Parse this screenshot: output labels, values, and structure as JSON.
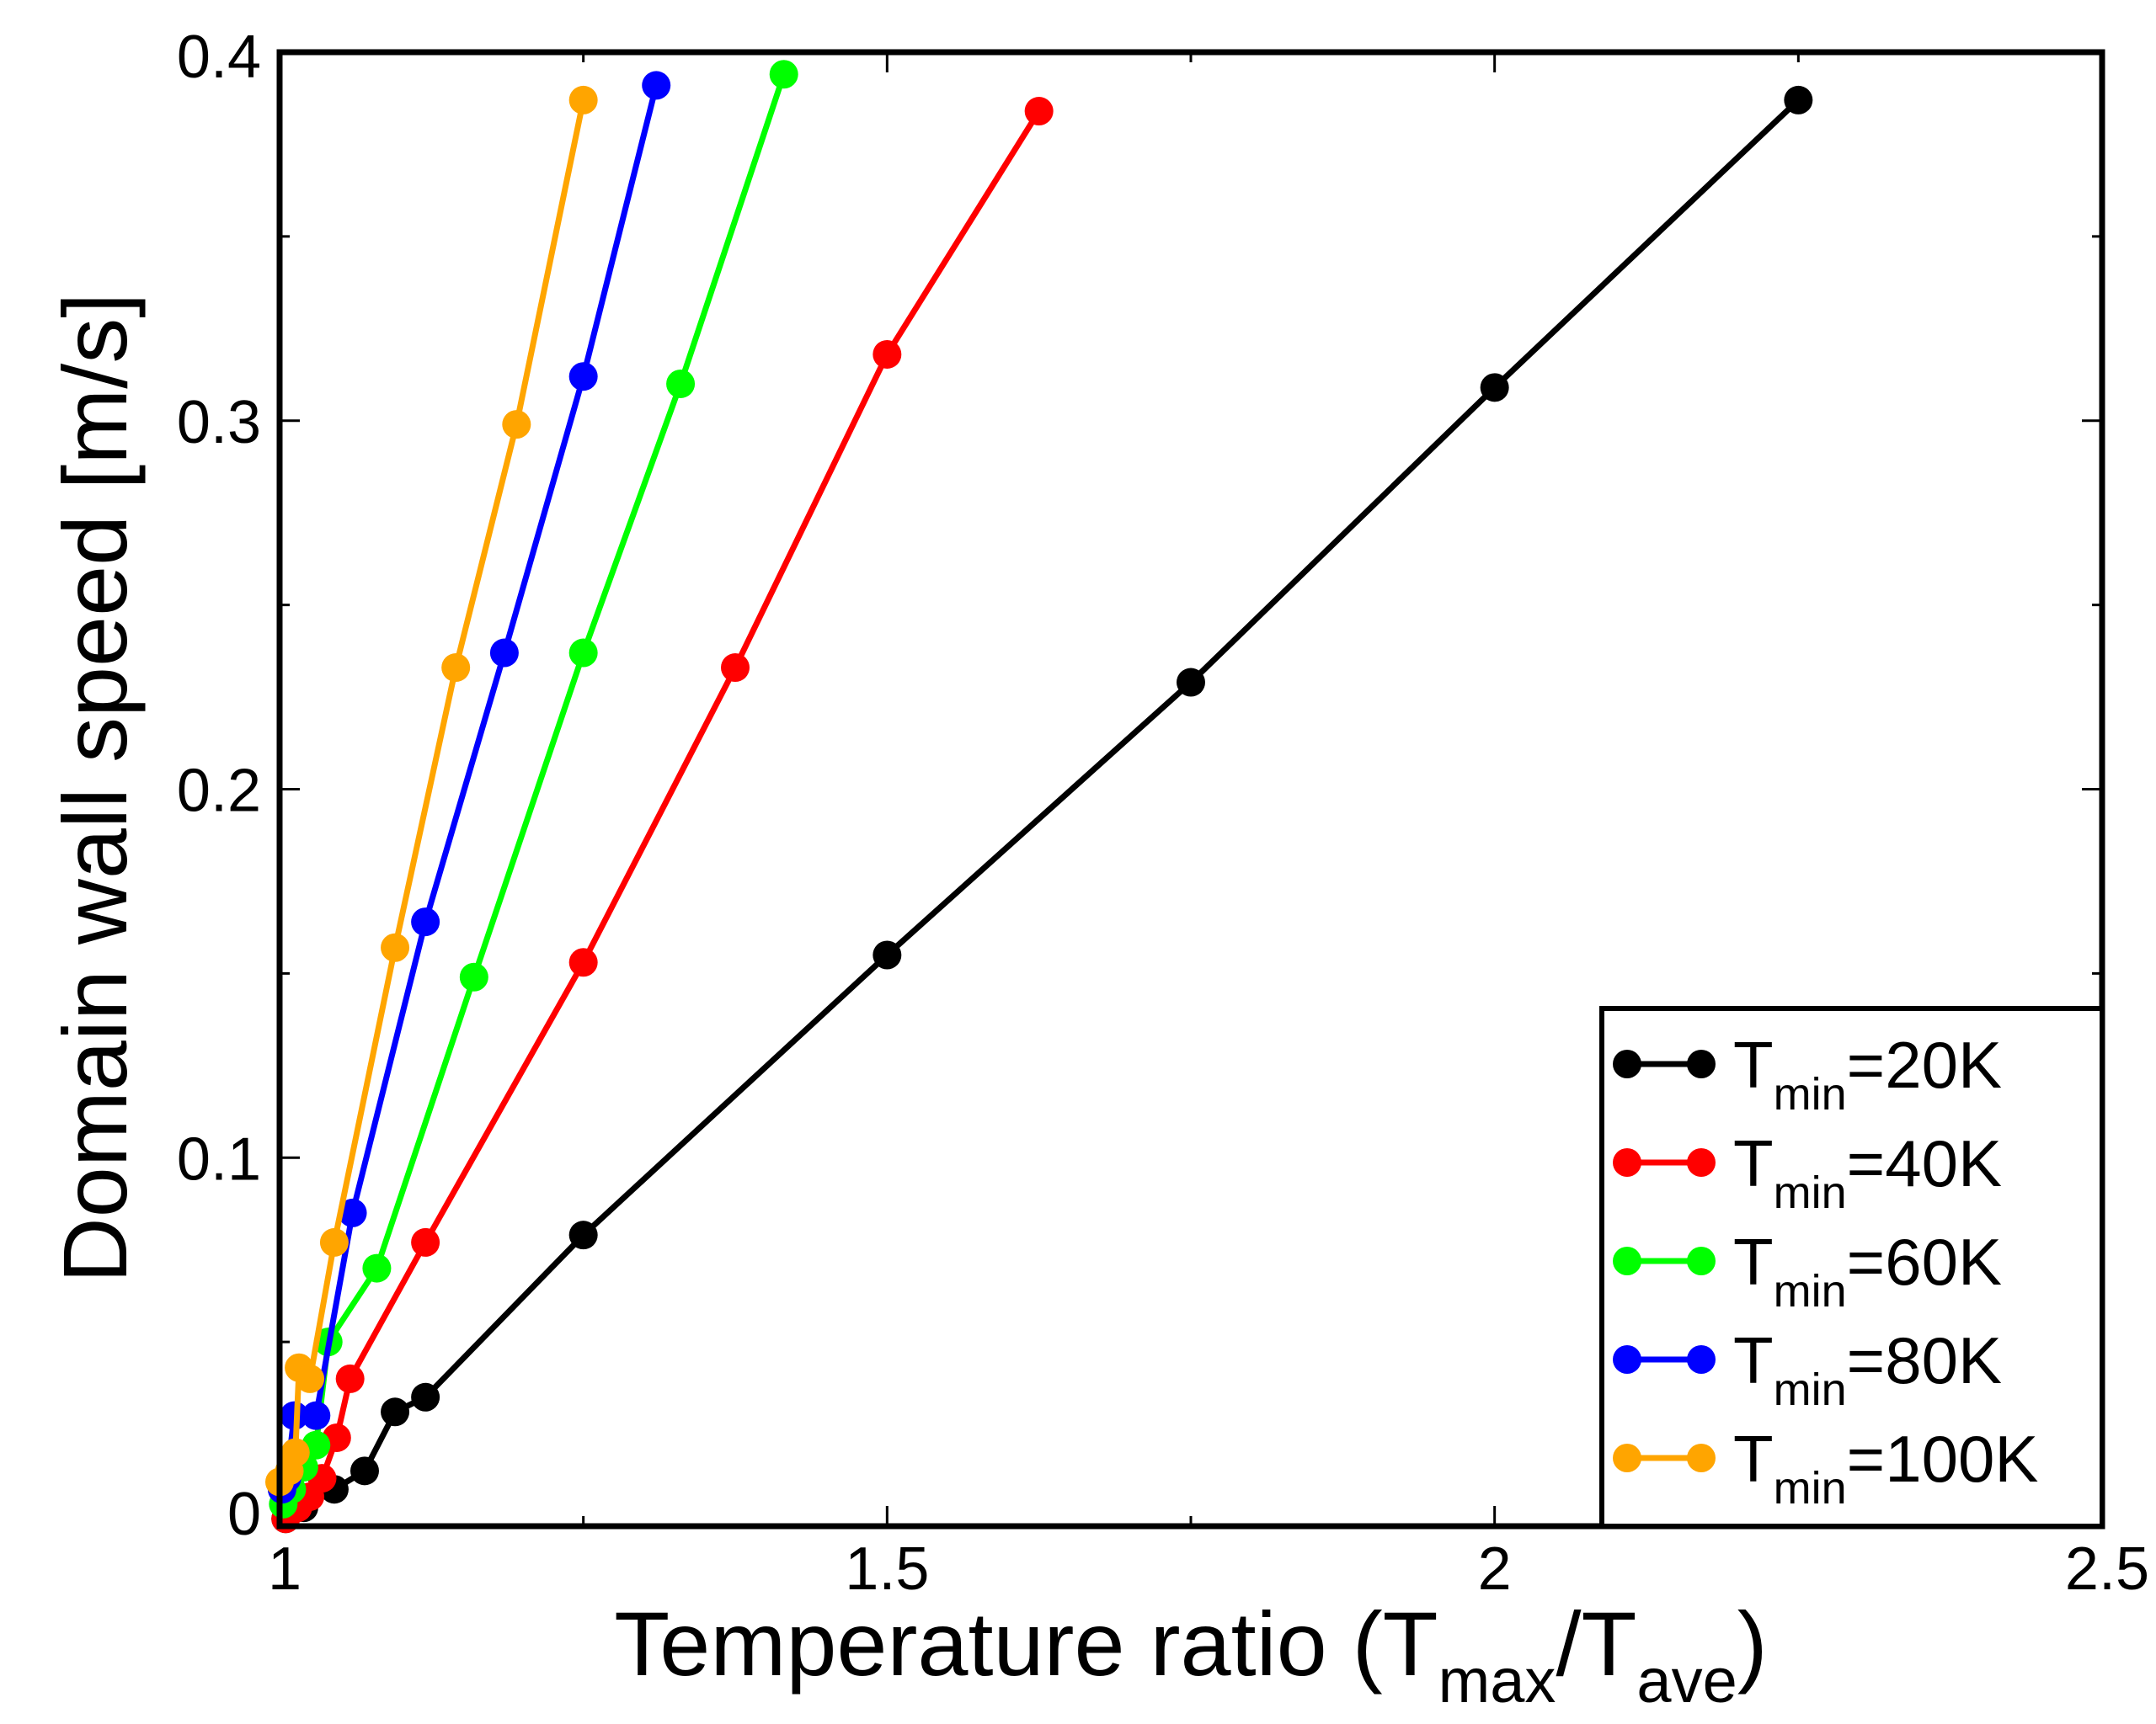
{
  "chart_data": {
    "type": "line",
    "title": "",
    "xlabel": {
      "main": "Temperature ratio (T",
      "sub1": "max",
      "mid": "/T",
      "sub2": "ave",
      "end": ")"
    },
    "ylabel": "Domain wall speed [m/s]",
    "xlim": [
      1,
      2.5
    ],
    "ylim": [
      0,
      0.4
    ],
    "x_ticks": [
      1,
      1.5,
      2,
      2.5
    ],
    "x_tick_labels": [
      "1",
      "1.5",
      "2",
      "2.5"
    ],
    "x_minor_ticks": [
      1.25,
      1.75,
      2.25
    ],
    "y_ticks": [
      0,
      0.1,
      0.2,
      0.3,
      0.4
    ],
    "y_tick_labels": [
      "0",
      "0.1",
      "0.2",
      "0.3",
      "0.4"
    ],
    "y_minor_ticks": [
      0.05,
      0.15,
      0.25,
      0.35
    ],
    "grid": false,
    "legend_position": "bottom-right",
    "series": [
      {
        "name": "Tmin=20K",
        "label_main": "T",
        "label_sub": "min",
        "label_rest": "=20K",
        "color": "#000000",
        "points": [
          [
            1.005,
            0.002
          ],
          [
            1.02,
            0.005
          ],
          [
            1.045,
            0.01
          ],
          [
            1.07,
            0.015
          ],
          [
            1.095,
            0.031
          ],
          [
            1.12,
            0.035
          ],
          [
            1.25,
            0.079
          ],
          [
            1.5,
            0.155
          ],
          [
            1.75,
            0.229
          ],
          [
            2.0,
            0.309
          ],
          [
            2.25,
            0.387
          ]
        ]
      },
      {
        "name": "Tmin=40K",
        "label_main": "T",
        "label_sub": "min",
        "label_rest": "=40K",
        "color": "#ff0000",
        "points": [
          [
            1.005,
            0.002
          ],
          [
            1.015,
            0.005
          ],
          [
            1.025,
            0.008
          ],
          [
            1.035,
            0.013
          ],
          [
            1.047,
            0.024
          ],
          [
            1.058,
            0.04
          ],
          [
            1.12,
            0.077
          ],
          [
            1.25,
            0.153
          ],
          [
            1.375,
            0.233
          ],
          [
            1.5,
            0.318
          ],
          [
            1.625,
            0.384
          ]
        ]
      },
      {
        "name": "Tmin=60K",
        "label_main": "T",
        "label_sub": "min",
        "label_rest": "=60K",
        "color": "#00ff00",
        "points": [
          [
            1.003,
            0.006
          ],
          [
            1.01,
            0.01
          ],
          [
            1.02,
            0.016
          ],
          [
            1.03,
            0.022
          ],
          [
            1.04,
            0.05
          ],
          [
            1.08,
            0.07
          ],
          [
            1.16,
            0.149
          ],
          [
            1.25,
            0.237
          ],
          [
            1.33,
            0.31
          ],
          [
            1.415,
            0.394
          ]
        ]
      },
      {
        "name": "Tmin=80K",
        "label_main": "T",
        "label_sub": "min",
        "label_rest": "=80K",
        "color": "#0000ff",
        "points": [
          [
            1.002,
            0.01
          ],
          [
            1.006,
            0.013
          ],
          [
            1.012,
            0.03
          ],
          [
            1.03,
            0.03
          ],
          [
            1.06,
            0.085
          ],
          [
            1.12,
            0.164
          ],
          [
            1.185,
            0.237
          ],
          [
            1.25,
            0.312
          ],
          [
            1.31,
            0.391
          ]
        ]
      },
      {
        "name": "Tmin=100K",
        "label_main": "T",
        "label_sub": "min",
        "label_rest": "=100K",
        "color": "#ffa500",
        "points": [
          [
            1.0,
            0.012
          ],
          [
            1.008,
            0.015
          ],
          [
            1.013,
            0.02
          ],
          [
            1.016,
            0.043
          ],
          [
            1.025,
            0.04
          ],
          [
            1.045,
            0.077
          ],
          [
            1.095,
            0.157
          ],
          [
            1.145,
            0.233
          ],
          [
            1.195,
            0.299
          ],
          [
            1.25,
            0.387
          ]
        ]
      }
    ]
  }
}
